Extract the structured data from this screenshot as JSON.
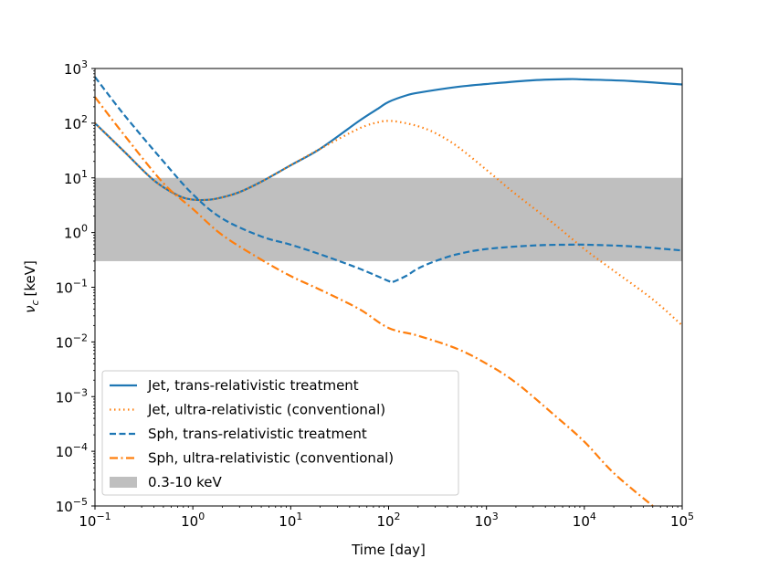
{
  "chart_data": {
    "type": "line",
    "title": "",
    "xlabel": "Time [day]",
    "ylabel_main": "ν",
    "ylabel_sub": "c",
    "ylabel_unit": "[keV]",
    "xscale": "log",
    "yscale": "log",
    "xlim": [
      0.1,
      100000
    ],
    "ylim": [
      1e-05,
      1000
    ],
    "grid": false,
    "legend_position": "lower-left",
    "x_ticks": [
      {
        "value": 0.1,
        "base": "10",
        "exp": "−1"
      },
      {
        "value": 1,
        "base": "10",
        "exp": "0"
      },
      {
        "value": 10,
        "base": "10",
        "exp": "1"
      },
      {
        "value": 100,
        "base": "10",
        "exp": "2"
      },
      {
        "value": 1000,
        "base": "10",
        "exp": "3"
      },
      {
        "value": 10000,
        "base": "10",
        "exp": "4"
      },
      {
        "value": 100000,
        "base": "10",
        "exp": "5"
      }
    ],
    "y_ticks": [
      {
        "value": 1e-05,
        "base": "10",
        "exp": "−5"
      },
      {
        "value": 0.0001,
        "base": "10",
        "exp": "−4"
      },
      {
        "value": 0.001,
        "base": "10",
        "exp": "−3"
      },
      {
        "value": 0.01,
        "base": "10",
        "exp": "−2"
      },
      {
        "value": 0.1,
        "base": "10",
        "exp": "−1"
      },
      {
        "value": 1,
        "base": "10",
        "exp": "0"
      },
      {
        "value": 10,
        "base": "10",
        "exp": "1"
      },
      {
        "value": 100,
        "base": "10",
        "exp": "2"
      },
      {
        "value": 1000,
        "base": "10",
        "exp": "3"
      }
    ],
    "band": {
      "name": "0.3-10 keV",
      "y_range": [
        0.3,
        10
      ],
      "color": "#bfbfbf"
    },
    "series": [
      {
        "name": "Jet, trans-relativistic treatment",
        "color": "#1f77b4",
        "style": "solid",
        "x": [
          0.1,
          0.2,
          0.4,
          0.7,
          1,
          1.5,
          2,
          3,
          5,
          10,
          20,
          50,
          80,
          100,
          150,
          200,
          500,
          1000,
          3000,
          7000,
          10000,
          30000,
          100000
        ],
        "y": [
          100,
          30,
          9,
          4.8,
          4,
          4,
          4.4,
          5.5,
          8.5,
          17,
          34,
          110,
          190,
          245,
          320,
          360,
          460,
          520,
          610,
          640,
          630,
          590,
          510
        ]
      },
      {
        "name": "Jet, ultra-relativistic (conventional)",
        "color": "#ff7f0e",
        "style": "dotted",
        "x": [
          0.1,
          0.2,
          0.4,
          0.7,
          1,
          1.5,
          2,
          3,
          5,
          10,
          20,
          50,
          80,
          100,
          130,
          200,
          300,
          500,
          1000,
          2000,
          5000,
          10000,
          20000,
          50000,
          100000
        ],
        "y": [
          100,
          30,
          9,
          4.8,
          4,
          4,
          4.4,
          5.5,
          8.5,
          17,
          34,
          80,
          105,
          110,
          105,
          88,
          66,
          38,
          14,
          5,
          1.4,
          0.5,
          0.2,
          0.06,
          0.02
        ]
      },
      {
        "name": "Sph, trans-relativistic treatment",
        "color": "#1f77b4",
        "style": "dashed",
        "x": [
          0.1,
          0.2,
          0.5,
          1,
          2,
          5,
          10,
          20,
          50,
          100,
          110,
          150,
          200,
          300,
          500,
          1000,
          3000,
          7000,
          10000,
          30000,
          100000
        ],
        "y": [
          700,
          140,
          20,
          5,
          1.8,
          0.85,
          0.6,
          0.4,
          0.22,
          0.13,
          0.125,
          0.16,
          0.22,
          0.3,
          0.4,
          0.5,
          0.58,
          0.6,
          0.6,
          0.56,
          0.47
        ]
      },
      {
        "name": "Sph, ultra-relativistic (conventional)",
        "color": "#ff7f0e",
        "style": "dashdot",
        "x": [
          0.1,
          0.2,
          0.5,
          1,
          2,
          5,
          10,
          20,
          50,
          100,
          200,
          500,
          1000,
          2000,
          5000,
          10000,
          20000,
          50000
        ],
        "y": [
          300,
          60,
          8,
          2.7,
          0.9,
          0.32,
          0.16,
          0.09,
          0.04,
          0.018,
          0.013,
          0.0075,
          0.004,
          0.0018,
          0.00045,
          0.00015,
          4e-05,
          1e-05
        ]
      }
    ]
  }
}
